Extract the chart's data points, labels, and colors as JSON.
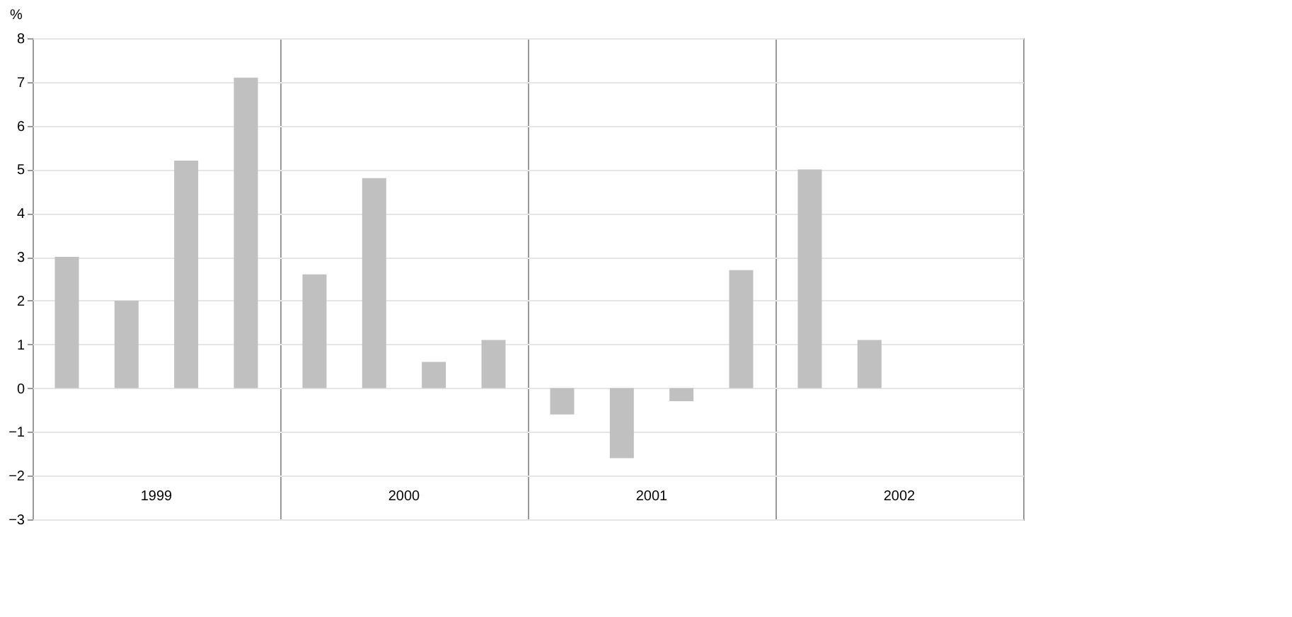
{
  "chart_data": {
    "type": "bar",
    "ylabel": "%",
    "categories": [
      "1999",
      "2000",
      "2001",
      "2002"
    ],
    "series": [
      {
        "color": "#c0c0c0",
        "values": [
          3.0,
          2.6,
          -0.6,
          5.0
        ]
      },
      {
        "color": "#c0c0c0",
        "values": [
          2.0,
          4.8,
          -1.6,
          1.1
        ]
      },
      {
        "color": "#c0c0c0",
        "values": [
          5.2,
          0.6,
          -0.3,
          null
        ]
      },
      {
        "color": "#c0c0c0",
        "values": [
          7.1,
          1.1,
          2.7,
          null
        ]
      }
    ],
    "ylim": [
      -3,
      8
    ],
    "yticks": [
      -3,
      -2,
      -1,
      0,
      1,
      2,
      3,
      4,
      5,
      6,
      7,
      8
    ],
    "grid": true,
    "legend": false
  }
}
